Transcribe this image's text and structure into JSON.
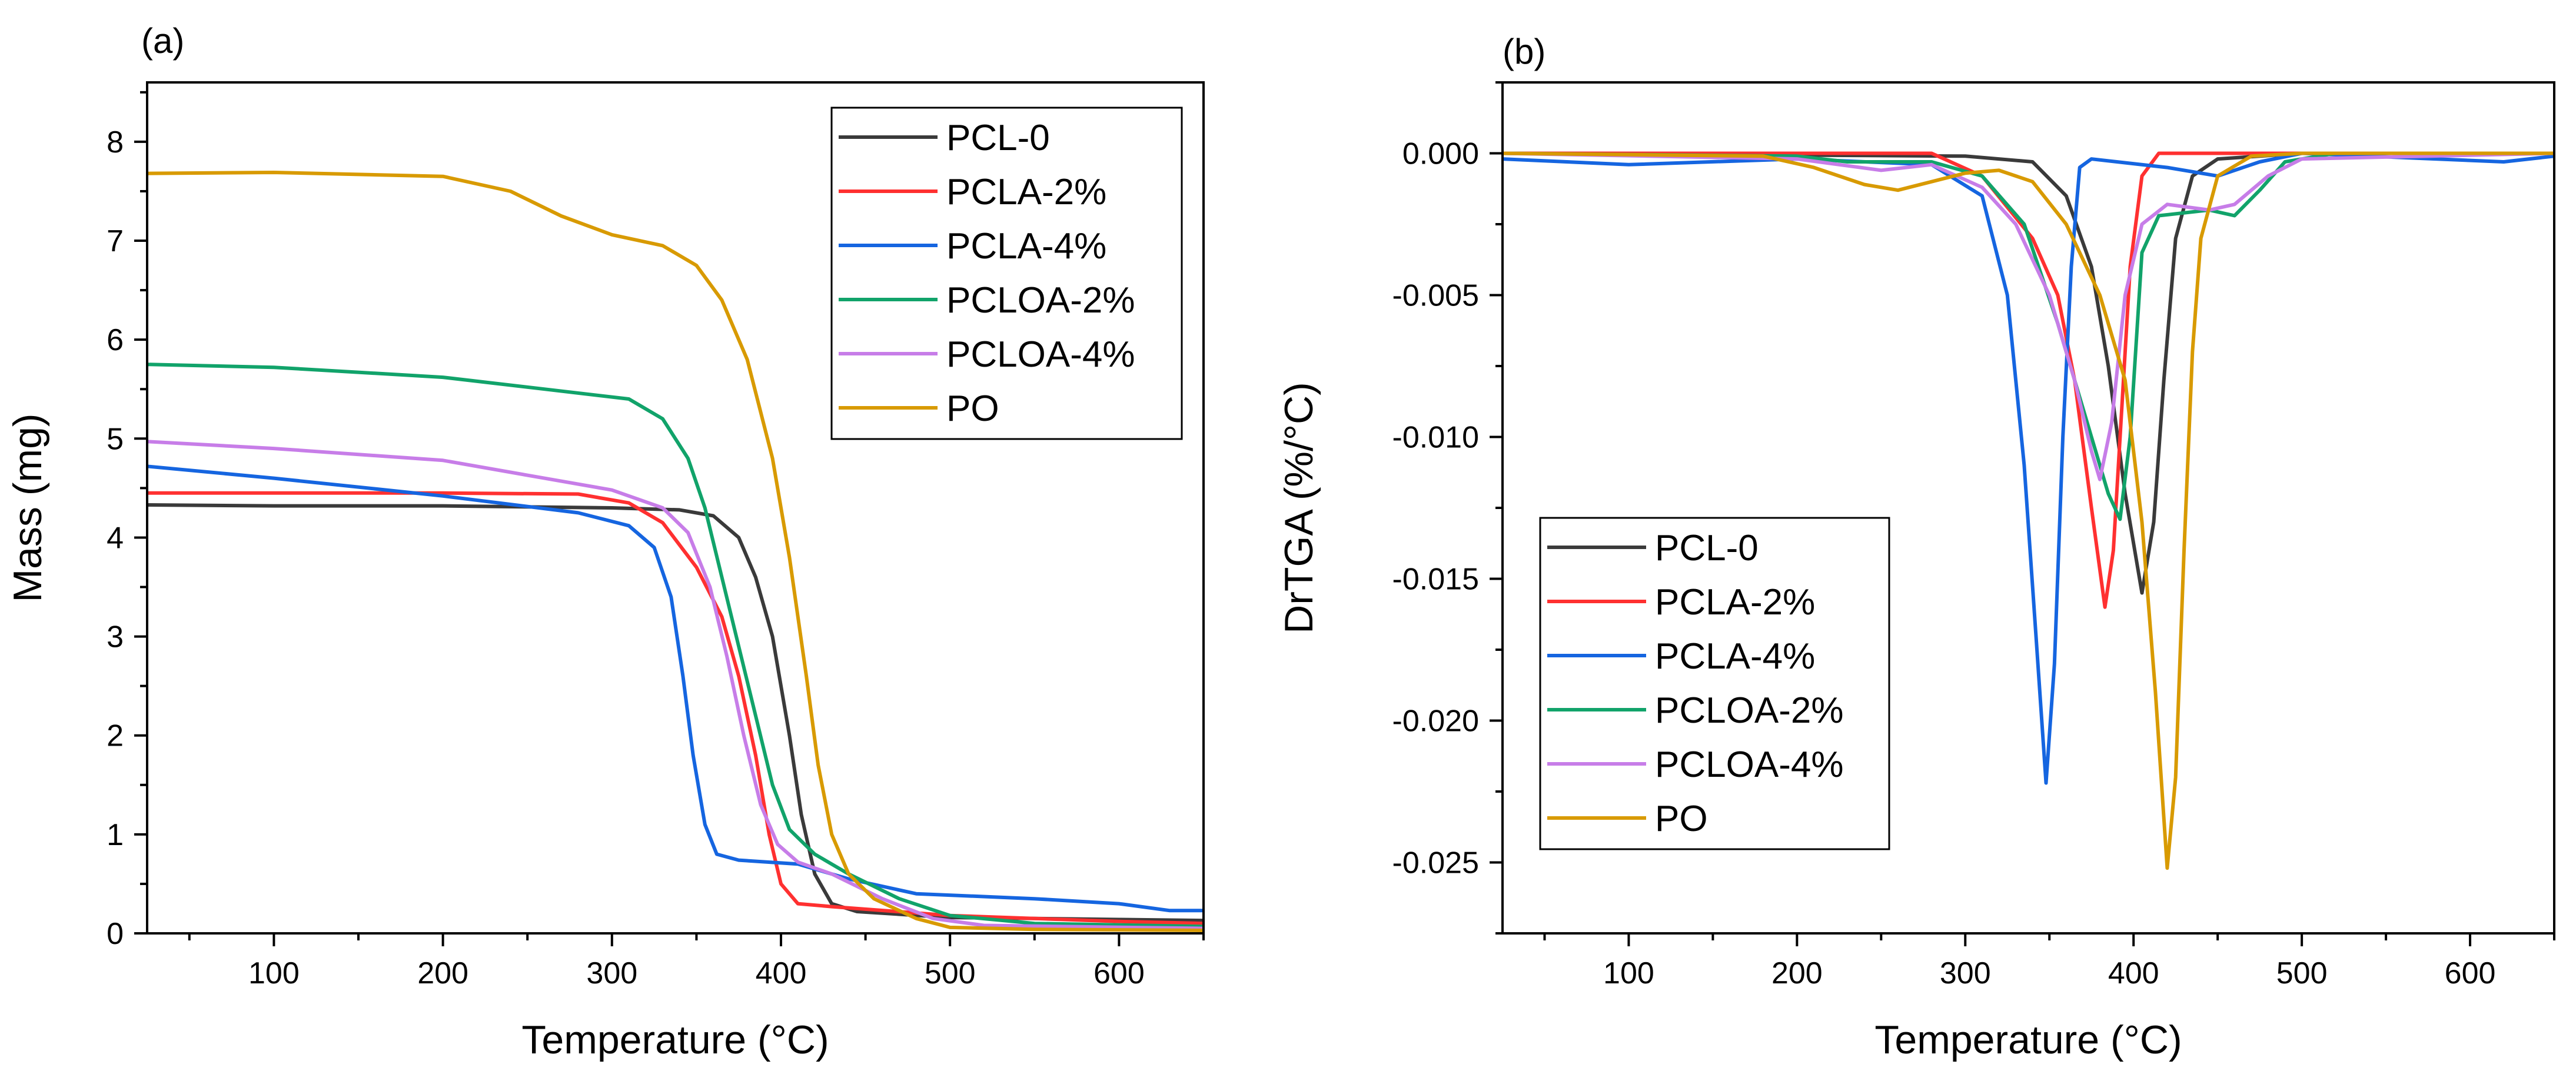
{
  "chart_data": [
    {
      "panel_label": "(a)",
      "type": "line",
      "xlabel": "Temperature (°C)",
      "ylabel": "Mass (mg)",
      "xlim": [
        25,
        650
      ],
      "ylim": [
        0,
        8.6
      ],
      "xticks": [
        100,
        200,
        300,
        400,
        500,
        600
      ],
      "yticks": [
        0,
        1,
        2,
        3,
        4,
        5,
        6,
        7,
        8
      ],
      "legend_position": "top-right",
      "series": [
        {
          "name": "PCL-0",
          "color": "#3a3a3a",
          "points": [
            [
              25,
              4.33
            ],
            [
              100,
              4.32
            ],
            [
              200,
              4.32
            ],
            [
              300,
              4.3
            ],
            [
              340,
              4.28
            ],
            [
              360,
              4.22
            ],
            [
              375,
              4.0
            ],
            [
              385,
              3.6
            ],
            [
              395,
              3.0
            ],
            [
              405,
              2.0
            ],
            [
              412,
              1.2
            ],
            [
              420,
              0.6
            ],
            [
              430,
              0.3
            ],
            [
              445,
              0.22
            ],
            [
              500,
              0.16
            ],
            [
              600,
              0.14
            ],
            [
              650,
              0.13
            ]
          ]
        },
        {
          "name": "PCLA-2%",
          "color": "#ff3030",
          "points": [
            [
              25,
              4.45
            ],
            [
              100,
              4.45
            ],
            [
              200,
              4.45
            ],
            [
              280,
              4.44
            ],
            [
              310,
              4.35
            ],
            [
              330,
              4.15
            ],
            [
              350,
              3.7
            ],
            [
              365,
              3.2
            ],
            [
              375,
              2.6
            ],
            [
              385,
              1.8
            ],
            [
              393,
              1.0
            ],
            [
              400,
              0.5
            ],
            [
              410,
              0.3
            ],
            [
              430,
              0.27
            ],
            [
              500,
              0.18
            ],
            [
              600,
              0.12
            ],
            [
              650,
              0.1
            ]
          ]
        },
        {
          "name": "PCLA-4%",
          "color": "#1565e0",
          "points": [
            [
              25,
              4.72
            ],
            [
              100,
              4.6
            ],
            [
              200,
              4.42
            ],
            [
              280,
              4.25
            ],
            [
              310,
              4.12
            ],
            [
              325,
              3.9
            ],
            [
              335,
              3.4
            ],
            [
              342,
              2.6
            ],
            [
              348,
              1.8
            ],
            [
              355,
              1.1
            ],
            [
              362,
              0.8
            ],
            [
              375,
              0.74
            ],
            [
              410,
              0.7
            ],
            [
              440,
              0.55
            ],
            [
              480,
              0.4
            ],
            [
              550,
              0.35
            ],
            [
              600,
              0.3
            ],
            [
              630,
              0.23
            ],
            [
              650,
              0.23
            ]
          ]
        },
        {
          "name": "PCLOA-2%",
          "color": "#11a36a",
          "points": [
            [
              25,
              5.75
            ],
            [
              100,
              5.72
            ],
            [
              200,
              5.62
            ],
            [
              260,
              5.5
            ],
            [
              310,
              5.4
            ],
            [
              330,
              5.2
            ],
            [
              345,
              4.8
            ],
            [
              355,
              4.3
            ],
            [
              365,
              3.6
            ],
            [
              375,
              2.9
            ],
            [
              385,
              2.2
            ],
            [
              395,
              1.5
            ],
            [
              405,
              1.05
            ],
            [
              420,
              0.8
            ],
            [
              440,
              0.6
            ],
            [
              470,
              0.35
            ],
            [
              500,
              0.18
            ],
            [
              550,
              0.1
            ],
            [
              650,
              0.07
            ]
          ]
        },
        {
          "name": "PCLOA-4%",
          "color": "#c77de8",
          "points": [
            [
              25,
              4.97
            ],
            [
              100,
              4.9
            ],
            [
              200,
              4.78
            ],
            [
              260,
              4.6
            ],
            [
              300,
              4.48
            ],
            [
              330,
              4.3
            ],
            [
              345,
              4.05
            ],
            [
              358,
              3.5
            ],
            [
              368,
              2.8
            ],
            [
              378,
              2.0
            ],
            [
              388,
              1.3
            ],
            [
              398,
              0.9
            ],
            [
              410,
              0.72
            ],
            [
              430,
              0.6
            ],
            [
              460,
              0.35
            ],
            [
              490,
              0.15
            ],
            [
              520,
              0.08
            ],
            [
              650,
              0.05
            ]
          ]
        },
        {
          "name": "PO",
          "color": "#d89a00",
          "points": [
            [
              25,
              7.68
            ],
            [
              100,
              7.69
            ],
            [
              200,
              7.65
            ],
            [
              240,
              7.5
            ],
            [
              270,
              7.25
            ],
            [
              300,
              7.06
            ],
            [
              330,
              6.95
            ],
            [
              350,
              6.75
            ],
            [
              365,
              6.4
            ],
            [
              380,
              5.8
            ],
            [
              395,
              4.8
            ],
            [
              405,
              3.8
            ],
            [
              415,
              2.6
            ],
            [
              422,
              1.7
            ],
            [
              430,
              1.0
            ],
            [
              440,
              0.6
            ],
            [
              455,
              0.35
            ],
            [
              480,
              0.15
            ],
            [
              500,
              0.06
            ],
            [
              550,
              0.04
            ],
            [
              650,
              0.03
            ]
          ]
        }
      ]
    },
    {
      "panel_label": "(b)",
      "type": "line",
      "xlabel": "Temperature (°C)",
      "ylabel": "DrTGA (%/°C)",
      "xlim": [
        25,
        650
      ],
      "ylim": [
        -0.0275,
        0.0025
      ],
      "xticks": [
        100,
        200,
        300,
        400,
        500,
        600
      ],
      "yticks": [
        0.0,
        -0.005,
        -0.01,
        -0.015,
        -0.02,
        -0.025
      ],
      "ytick_labels": [
        "0.000",
        "-0.005",
        "-0.010",
        "-0.015",
        "-0.020",
        "-0.025"
      ],
      "legend_position": "bottom-left",
      "series": [
        {
          "name": "PCL-0",
          "color": "#3a3a3a",
          "points": [
            [
              25,
              0.0
            ],
            [
              300,
              -0.0001
            ],
            [
              340,
              -0.0003
            ],
            [
              360,
              -0.0015
            ],
            [
              375,
              -0.004
            ],
            [
              385,
              -0.0075
            ],
            [
              395,
              -0.012
            ],
            [
              405,
              -0.0155
            ],
            [
              412,
              -0.013
            ],
            [
              418,
              -0.008
            ],
            [
              425,
              -0.003
            ],
            [
              435,
              -0.0008
            ],
            [
              450,
              -0.0002
            ],
            [
              500,
              0.0
            ],
            [
              650,
              0.0
            ]
          ]
        },
        {
          "name": "PCLA-2%",
          "color": "#ff3030",
          "points": [
            [
              25,
              0.0
            ],
            [
              280,
              0.0
            ],
            [
              310,
              -0.0008
            ],
            [
              340,
              -0.003
            ],
            [
              355,
              -0.005
            ],
            [
              365,
              -0.008
            ],
            [
              375,
              -0.0125
            ],
            [
              383,
              -0.016
            ],
            [
              388,
              -0.014
            ],
            [
              393,
              -0.009
            ],
            [
              398,
              -0.004
            ],
            [
              405,
              -0.0008
            ],
            [
              415,
              0.0
            ],
            [
              500,
              0.0
            ],
            [
              650,
              0.0
            ]
          ]
        },
        {
          "name": "PCLA-4%",
          "color": "#1565e0",
          "points": [
            [
              25,
              -0.0002
            ],
            [
              100,
              -0.0004
            ],
            [
              200,
              -0.0002
            ],
            [
              280,
              -0.0004
            ],
            [
              310,
              -0.0015
            ],
            [
              325,
              -0.005
            ],
            [
              335,
              -0.011
            ],
            [
              342,
              -0.017
            ],
            [
              348,
              -0.0222
            ],
            [
              353,
              -0.018
            ],
            [
              358,
              -0.01
            ],
            [
              363,
              -0.004
            ],
            [
              368,
              -0.0005
            ],
            [
              375,
              -0.0002
            ],
            [
              420,
              -0.0005
            ],
            [
              450,
              -0.0008
            ],
            [
              475,
              -0.0003
            ],
            [
              500,
              0.0
            ],
            [
              620,
              -0.0003
            ],
            [
              650,
              -0.0001
            ]
          ]
        },
        {
          "name": "PCLOA-2%",
          "color": "#11a36a",
          "points": [
            [
              25,
              0.0
            ],
            [
              200,
              -0.0001
            ],
            [
              230,
              -0.0003
            ],
            [
              280,
              -0.0003
            ],
            [
              310,
              -0.0008
            ],
            [
              335,
              -0.0025
            ],
            [
              355,
              -0.006
            ],
            [
              370,
              -0.009
            ],
            [
              385,
              -0.012
            ],
            [
              392,
              -0.0129
            ],
            [
              398,
              -0.01
            ],
            [
              405,
              -0.0035
            ],
            [
              415,
              -0.0022
            ],
            [
              445,
              -0.002
            ],
            [
              460,
              -0.0022
            ],
            [
              475,
              -0.0013
            ],
            [
              490,
              -0.0003
            ],
            [
              520,
              0.0
            ],
            [
              650,
              0.0
            ]
          ]
        },
        {
          "name": "PCLOA-4%",
          "color": "#c77de8",
          "points": [
            [
              25,
              0.0
            ],
            [
              200,
              -0.0002
            ],
            [
              250,
              -0.0006
            ],
            [
              280,
              -0.0004
            ],
            [
              310,
              -0.0012
            ],
            [
              330,
              -0.0025
            ],
            [
              350,
              -0.005
            ],
            [
              365,
              -0.008
            ],
            [
              375,
              -0.0105
            ],
            [
              380,
              -0.0115
            ],
            [
              387,
              -0.0095
            ],
            [
              395,
              -0.005
            ],
            [
              405,
              -0.0025
            ],
            [
              420,
              -0.0018
            ],
            [
              445,
              -0.002
            ],
            [
              460,
              -0.0018
            ],
            [
              480,
              -0.0008
            ],
            [
              500,
              -0.0002
            ],
            [
              650,
              0.0
            ]
          ]
        },
        {
          "name": "PO",
          "color": "#d89a00",
          "points": [
            [
              25,
              0.0
            ],
            [
              180,
              -0.0001
            ],
            [
              210,
              -0.0005
            ],
            [
              240,
              -0.0011
            ],
            [
              260,
              -0.0013
            ],
            [
              280,
              -0.001
            ],
            [
              300,
              -0.0007
            ],
            [
              320,
              -0.0006
            ],
            [
              340,
              -0.001
            ],
            [
              360,
              -0.0025
            ],
            [
              380,
              -0.005
            ],
            [
              395,
              -0.008
            ],
            [
              405,
              -0.013
            ],
            [
              413,
              -0.019
            ],
            [
              420,
              -0.0252
            ],
            [
              425,
              -0.022
            ],
            [
              430,
              -0.014
            ],
            [
              435,
              -0.007
            ],
            [
              440,
              -0.003
            ],
            [
              450,
              -0.0008
            ],
            [
              470,
              -0.0001
            ],
            [
              500,
              0.0
            ],
            [
              650,
              0.0
            ]
          ]
        }
      ]
    }
  ]
}
